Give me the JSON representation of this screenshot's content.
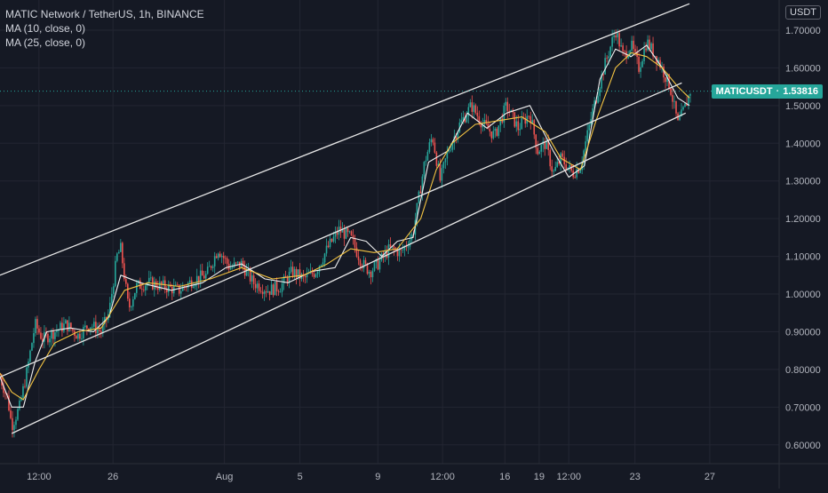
{
  "legend": {
    "title": "MATIC Network / TetherUS, 1h, BINANCE",
    "ma1": "MA (10, close, 0)",
    "ma2": "MA (25, close, 0)"
  },
  "currency": "USDT",
  "price_tag": {
    "symbol": "MATICUSDT",
    "value": "1.53816"
  },
  "colors": {
    "background": "#151924",
    "grid": "#232632",
    "up": "#26a69a",
    "down": "#ef5350",
    "ma_fast": "#f0f0f0",
    "ma_slow": "#f5c542",
    "channel": "#e6e6e6",
    "last_price": "#26a69a"
  },
  "chart_data": {
    "type": "line",
    "symbol": "MATICUSDT",
    "interval": "1h",
    "exchange": "BINANCE",
    "last_price": 1.53816,
    "ylim": [
      0.55,
      1.78
    ],
    "y_ticks": [
      "0.60000",
      "0.70000",
      "0.80000",
      "0.90000",
      "1.00000",
      "1.10000",
      "1.20000",
      "1.30000",
      "1.40000",
      "1.50000",
      "1.60000",
      "1.70000"
    ],
    "x_ticks": [
      {
        "label": "12:00",
        "t": 0.05
      },
      {
        "label": "26",
        "t": 0.145
      },
      {
        "label": "Aug",
        "t": 0.288
      },
      {
        "label": "5",
        "t": 0.385
      },
      {
        "label": "9",
        "t": 0.485
      },
      {
        "label": "12:00",
        "t": 0.568
      },
      {
        "label": "16",
        "t": 0.648
      },
      {
        "label": "19",
        "t": 0.692
      },
      {
        "label": "12:00",
        "t": 0.73
      },
      {
        "label": "23",
        "t": 0.815
      },
      {
        "label": "27",
        "t": 0.911
      }
    ],
    "series": [
      {
        "name": "MA (10, close, 0)",
        "path": [
          [
            0.0,
            0.78
          ],
          [
            0.015,
            0.7
          ],
          [
            0.03,
            0.7
          ],
          [
            0.045,
            0.82
          ],
          [
            0.06,
            0.9
          ],
          [
            0.09,
            0.91
          ],
          [
            0.12,
            0.9
          ],
          [
            0.14,
            0.94
          ],
          [
            0.155,
            1.05
          ],
          [
            0.18,
            1.03
          ],
          [
            0.22,
            1.01
          ],
          [
            0.26,
            1.03
          ],
          [
            0.29,
            1.07
          ],
          [
            0.31,
            1.08
          ],
          [
            0.34,
            1.04
          ],
          [
            0.37,
            1.03
          ],
          [
            0.4,
            1.06
          ],
          [
            0.43,
            1.07
          ],
          [
            0.45,
            1.15
          ],
          [
            0.47,
            1.14
          ],
          [
            0.49,
            1.1
          ],
          [
            0.51,
            1.14
          ],
          [
            0.53,
            1.15
          ],
          [
            0.55,
            1.35
          ],
          [
            0.575,
            1.38
          ],
          [
            0.6,
            1.48
          ],
          [
            0.625,
            1.44
          ],
          [
            0.65,
            1.48
          ],
          [
            0.68,
            1.5
          ],
          [
            0.71,
            1.38
          ],
          [
            0.73,
            1.31
          ],
          [
            0.75,
            1.34
          ],
          [
            0.77,
            1.57
          ],
          [
            0.79,
            1.65
          ],
          [
            0.81,
            1.63
          ],
          [
            0.83,
            1.66
          ],
          [
            0.85,
            1.6
          ],
          [
            0.87,
            1.52
          ],
          [
            0.885,
            1.5
          ]
        ]
      },
      {
        "name": "MA (25, close, 0)",
        "path": [
          [
            0.0,
            0.79
          ],
          [
            0.015,
            0.74
          ],
          [
            0.03,
            0.72
          ],
          [
            0.05,
            0.8
          ],
          [
            0.07,
            0.87
          ],
          [
            0.1,
            0.9
          ],
          [
            0.13,
            0.91
          ],
          [
            0.16,
            1.01
          ],
          [
            0.19,
            1.03
          ],
          [
            0.23,
            1.02
          ],
          [
            0.27,
            1.04
          ],
          [
            0.31,
            1.07
          ],
          [
            0.35,
            1.04
          ],
          [
            0.39,
            1.05
          ],
          [
            0.42,
            1.08
          ],
          [
            0.45,
            1.12
          ],
          [
            0.48,
            1.11
          ],
          [
            0.51,
            1.12
          ],
          [
            0.54,
            1.2
          ],
          [
            0.56,
            1.33
          ],
          [
            0.58,
            1.4
          ],
          [
            0.61,
            1.45
          ],
          [
            0.64,
            1.46
          ],
          [
            0.67,
            1.47
          ],
          [
            0.7,
            1.43
          ],
          [
            0.72,
            1.36
          ],
          [
            0.745,
            1.33
          ],
          [
            0.765,
            1.46
          ],
          [
            0.79,
            1.6
          ],
          [
            0.81,
            1.64
          ],
          [
            0.83,
            1.63
          ],
          [
            0.85,
            1.6
          ],
          [
            0.87,
            1.55
          ],
          [
            0.885,
            1.52
          ]
        ]
      },
      {
        "name": "Upper channel",
        "path": [
          [
            0.0,
            1.05
          ],
          [
            0.885,
            1.77
          ]
        ]
      },
      {
        "name": "Middle channel",
        "path": [
          [
            0.0,
            0.78
          ],
          [
            0.875,
            1.56
          ]
        ]
      },
      {
        "name": "Lower channel",
        "path": [
          [
            0.015,
            0.63
          ],
          [
            0.88,
            1.48
          ]
        ]
      }
    ],
    "price_path": [
      [
        0.0,
        0.78
      ],
      [
        0.01,
        0.72
      ],
      [
        0.015,
        0.65
      ],
      [
        0.025,
        0.7
      ],
      [
        0.035,
        0.8
      ],
      [
        0.045,
        0.92
      ],
      [
        0.055,
        0.88
      ],
      [
        0.07,
        0.9
      ],
      [
        0.085,
        0.92
      ],
      [
        0.1,
        0.89
      ],
      [
        0.115,
        0.92
      ],
      [
        0.13,
        0.9
      ],
      [
        0.14,
        0.95
      ],
      [
        0.15,
        1.1
      ],
      [
        0.155,
        1.12
      ],
      [
        0.165,
        0.96
      ],
      [
        0.175,
        1.02
      ],
      [
        0.19,
        1.03
      ],
      [
        0.21,
        1.02
      ],
      [
        0.23,
        1.01
      ],
      [
        0.25,
        1.04
      ],
      [
        0.265,
        1.05
      ],
      [
        0.28,
        1.12
      ],
      [
        0.295,
        1.07
      ],
      [
        0.31,
        1.08
      ],
      [
        0.325,
        1.03
      ],
      [
        0.345,
        1.01
      ],
      [
        0.36,
        1.02
      ],
      [
        0.375,
        1.06
      ],
      [
        0.39,
        1.04
      ],
      [
        0.405,
        1.06
      ],
      [
        0.42,
        1.12
      ],
      [
        0.435,
        1.17
      ],
      [
        0.45,
        1.15
      ],
      [
        0.465,
        1.08
      ],
      [
        0.475,
        1.06
      ],
      [
        0.485,
        1.08
      ],
      [
        0.5,
        1.12
      ],
      [
        0.515,
        1.11
      ],
      [
        0.53,
        1.16
      ],
      [
        0.545,
        1.35
      ],
      [
        0.555,
        1.42
      ],
      [
        0.565,
        1.3
      ],
      [
        0.575,
        1.38
      ],
      [
        0.59,
        1.45
      ],
      [
        0.605,
        1.5
      ],
      [
        0.62,
        1.45
      ],
      [
        0.635,
        1.42
      ],
      [
        0.65,
        1.5
      ],
      [
        0.665,
        1.44
      ],
      [
        0.68,
        1.48
      ],
      [
        0.69,
        1.38
      ],
      [
        0.7,
        1.4
      ],
      [
        0.71,
        1.32
      ],
      [
        0.72,
        1.36
      ],
      [
        0.735,
        1.32
      ],
      [
        0.745,
        1.34
      ],
      [
        0.76,
        1.48
      ],
      [
        0.775,
        1.6
      ],
      [
        0.79,
        1.7
      ],
      [
        0.8,
        1.63
      ],
      [
        0.81,
        1.66
      ],
      [
        0.82,
        1.6
      ],
      [
        0.83,
        1.67
      ],
      [
        0.845,
        1.62
      ],
      [
        0.86,
        1.55
      ],
      [
        0.87,
        1.45
      ],
      [
        0.88,
        1.5
      ],
      [
        0.886,
        1.538
      ]
    ]
  }
}
